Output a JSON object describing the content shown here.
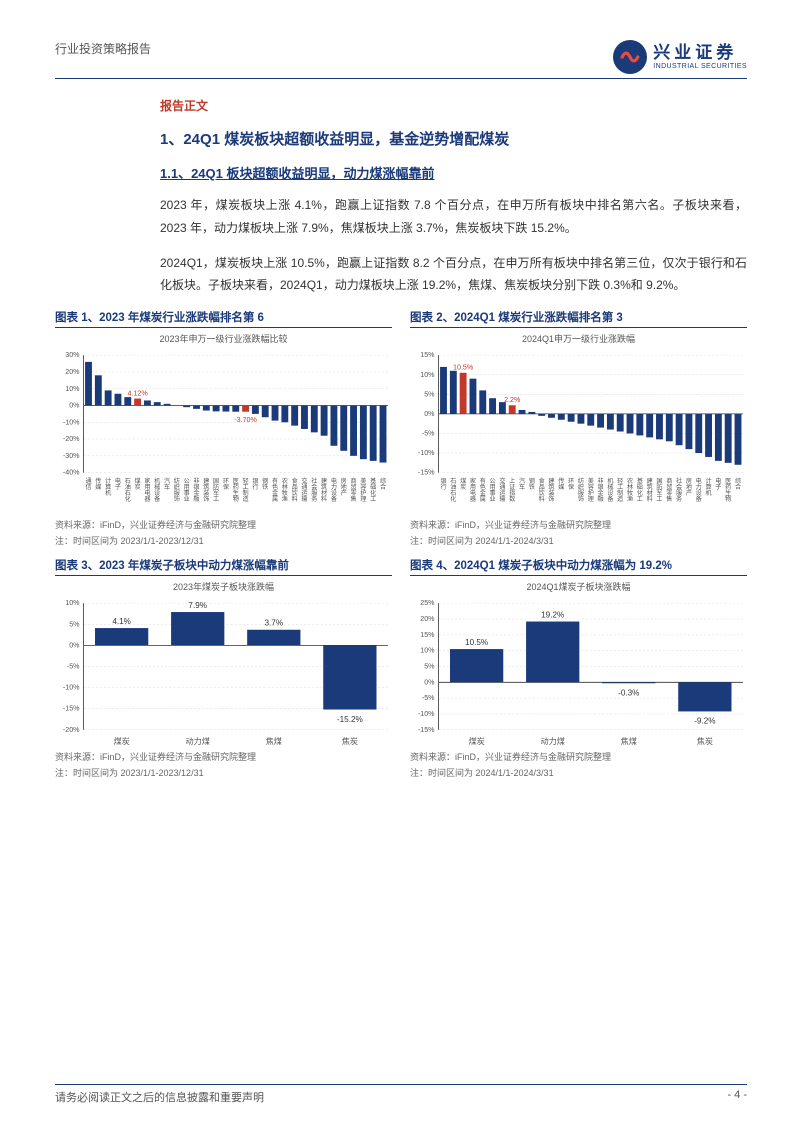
{
  "header": {
    "left_text": "行业投资策略报告",
    "logo_cn": "兴业证券",
    "logo_en": "INDUSTRIAL SECURITIES"
  },
  "section_label": "报告正文",
  "h1": "1、24Q1 煤炭板块超额收益明显，基金逆势增配煤炭",
  "h2": "1.1、24Q1 板块超额收益明显，动力煤涨幅靠前",
  "para1": "2023 年，煤炭板块上涨 4.1%，跑赢上证指数 7.8 个百分点，在申万所有板块中排名第六名。子板块来看，2023 年，动力煤板块上涨 7.9%，焦煤板块上涨 3.7%，焦炭板块下跌 15.2%。",
  "para2": "2024Q1，煤炭板块上涨 10.5%，跑赢上证指数 8.2 个百分点，在申万所有板块中排名第三位，仅次于银行和石化板块。子板块来看，2024Q1，动力煤板块上涨 19.2%，焦煤、焦炭板块分别下跌 0.3%和 9.2%。",
  "charts": {
    "c1": {
      "title": "图表 1、2023 年煤炭行业涨跌幅排名第 6",
      "subtitle": "2023年申万一级行业涨跌幅比较",
      "type": "bar",
      "y_ticks": [
        30,
        20,
        10,
        0,
        -10,
        -20,
        -30,
        -40
      ],
      "ylim": [
        -40,
        30
      ],
      "bar_color": "#1a3a7a",
      "highlight_color": "#c0392b",
      "grid_color": "#d9d9d9",
      "axis_color": "#333333",
      "label_fontsize": 6,
      "callouts": [
        {
          "idx": 5,
          "label": "4.12%",
          "color": "#c0392b"
        },
        {
          "idx": 16,
          "label": "-3.70%",
          "color": "#c0392b"
        }
      ],
      "categories": [
        "通信",
        "传媒",
        "计算机",
        "电子",
        "石油石化",
        "煤炭",
        "家用电器",
        "机械设备",
        "汽车",
        "纺织服饰",
        "公用事业",
        "非银金融",
        "建筑装饰",
        "国防军工",
        "环保",
        "医药生物",
        "轻工制造",
        "银行",
        "钢铁",
        "有色金属",
        "农林牧渔",
        "食品饮料",
        "交通运输",
        "社会服务",
        "建筑材料",
        "电力设备",
        "房地产",
        "商贸零售",
        "美容护理",
        "基础化工",
        "综合"
      ],
      "values": [
        26,
        18,
        9,
        7,
        5,
        4.12,
        3,
        2,
        1,
        0,
        -1,
        -2,
        -3,
        -3.5,
        -3.6,
        -3.7,
        -3.7,
        -5,
        -7,
        -9,
        -10,
        -12,
        -14,
        -16,
        -18,
        -24,
        -27,
        -30,
        -32,
        -33,
        -34
      ],
      "highlights": [
        5,
        16
      ],
      "source": "资料来源：iFinD，兴业证券经济与金融研究院整理",
      "note": "注：时间区间为 2023/1/1-2023/12/31"
    },
    "c2": {
      "title": "图表 2、2024Q1 煤炭行业涨跌幅排名第 3",
      "subtitle": "2024Q1申万一级行业涨跌幅",
      "type": "bar",
      "y_ticks": [
        15,
        10,
        5,
        0,
        -5,
        -10,
        -15
      ],
      "ylim": [
        -15,
        15
      ],
      "bar_color": "#1a3a7a",
      "highlight_color": "#c0392b",
      "grid_color": "#d9d9d9",
      "axis_color": "#333333",
      "label_fontsize": 6,
      "callouts": [
        {
          "idx": 2,
          "label": "10.5%",
          "color": "#c0392b"
        },
        {
          "idx": 7,
          "label": "2.2%",
          "color": "#c0392b"
        }
      ],
      "categories": [
        "银行",
        "石油石化",
        "煤炭",
        "家用电器",
        "有色金属",
        "公用事业",
        "交通运输",
        "上证指数",
        "汽车",
        "钢铁",
        "食品饮料",
        "建筑装饰",
        "传媒",
        "环保",
        "纺织服饰",
        "美容护理",
        "非银金融",
        "机械设备",
        "轻工制造",
        "农林牧渔",
        "基础化工",
        "建筑材料",
        "国防军工",
        "商贸零售",
        "社会服务",
        "房地产",
        "电力设备",
        "计算机",
        "电子",
        "医药生物",
        "综合"
      ],
      "values": [
        12,
        11,
        10.5,
        9,
        6,
        4,
        3,
        2.2,
        1,
        0.5,
        -0.5,
        -1,
        -1.5,
        -2,
        -2.5,
        -3,
        -3.5,
        -4,
        -4.5,
        -5,
        -5.5,
        -6,
        -6.5,
        -7,
        -8,
        -9,
        -10,
        -11,
        -12,
        -12.5,
        -13
      ],
      "highlights": [
        2,
        7
      ],
      "source": "资料来源：iFinD，兴业证券经济与金融研究院整理",
      "note": "注：时间区间为 2024/1/1-2024/3/31"
    },
    "c3": {
      "title": "图表 3、2023 年煤炭子板块中动力煤涨幅靠前",
      "subtitle": "2023年煤炭子板块涨跌幅",
      "type": "bar",
      "y_ticks": [
        10,
        5,
        0,
        -5,
        -10,
        -15,
        -20
      ],
      "ylim": [
        -20,
        10
      ],
      "bar_color": "#1a3a7a",
      "grid_color": "#d9d9d9",
      "axis_color": "#333333",
      "label_fontsize": 8,
      "categories": [
        "煤炭",
        "动力煤",
        "焦煤",
        "焦炭"
      ],
      "values": [
        4.1,
        7.9,
        3.7,
        -15.2
      ],
      "value_labels": [
        "4.1%",
        "7.9%",
        "3.7%",
        "-15.2%"
      ],
      "source": "资料来源：iFinD，兴业证券经济与金融研究院整理",
      "note": "注：时间区间为 2023/1/1-2023/12/31"
    },
    "c4": {
      "title": "图表 4、2024Q1 煤炭子板块中动力煤涨幅为 19.2%",
      "subtitle": "2024Q1煤炭子板块涨跌幅",
      "type": "bar",
      "y_ticks": [
        25,
        20,
        15,
        10,
        5,
        0,
        -5,
        -10,
        -15
      ],
      "ylim": [
        -15,
        25
      ],
      "bar_color": "#1a3a7a",
      "grid_color": "#d9d9d9",
      "axis_color": "#333333",
      "label_fontsize": 8,
      "categories": [
        "煤炭",
        "动力煤",
        "焦煤",
        "焦炭"
      ],
      "values": [
        10.5,
        19.2,
        -0.3,
        -9.2
      ],
      "value_labels": [
        "10.5%",
        "19.2%",
        "-0.3%",
        "-9.2%"
      ],
      "source": "资料来源：iFinD，兴业证券经济与金融研究院整理",
      "note": "注：时间区间为 2024/1/1-2024/3/31"
    }
  },
  "footer": {
    "disclaimer": "请务必阅读正文之后的信息披露和重要声明",
    "page_num": "- 4 -"
  },
  "colors": {
    "primary": "#1a3a7a",
    "accent_red": "#c0392b",
    "text": "#333333",
    "muted": "#666666",
    "background": "#ffffff"
  }
}
